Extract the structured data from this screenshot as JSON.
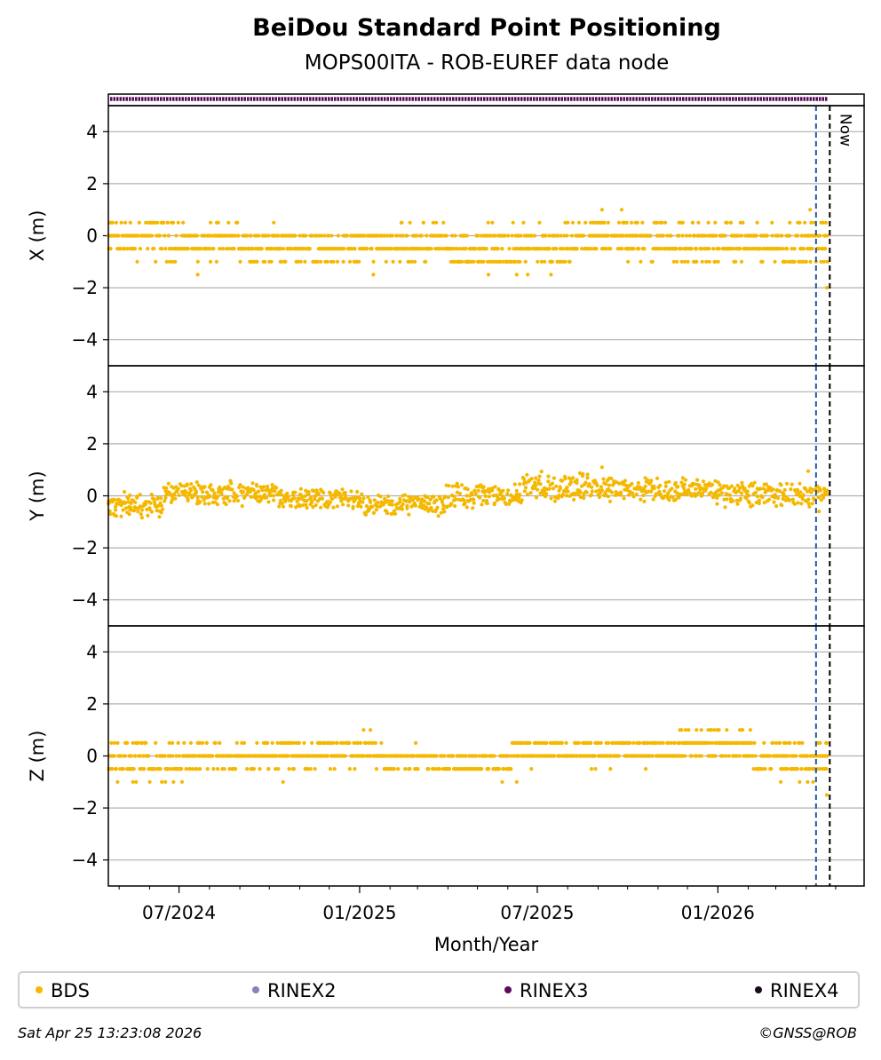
{
  "chart_data": {
    "type": "scatter",
    "title": "BeiDou Standard Point Positioning",
    "subtitle": "MOPS00ITA - ROB-EUREF data node",
    "xlabel": "Month/Year",
    "x_range": [
      "2024-04-20",
      "2026-05-30"
    ],
    "x_ticks": [
      {
        "date": "2024-07-01",
        "label": "07/2024"
      },
      {
        "date": "2025-01-01",
        "label": "01/2025"
      },
      {
        "date": "2025-07-01",
        "label": "07/2025"
      },
      {
        "date": "2026-01-01",
        "label": "01/2026"
      }
    ],
    "vlines": [
      {
        "date": "2026-04-11",
        "color": "#1f5aa6",
        "style": "dashed"
      },
      {
        "date": "2026-04-25",
        "color": "#000000",
        "style": "dashed",
        "label": "Now"
      }
    ],
    "availability_strip": {
      "series": "RINEX3",
      "start": "2024-04-20",
      "end": "2026-04-23",
      "color": "#5b0a5b"
    },
    "data_end": "2026-04-23",
    "grid": true,
    "panels": [
      {
        "ylabel": "X (m)",
        "ylim": [
          -5,
          5
        ],
        "yticks": [
          4,
          2,
          0,
          -2,
          -4
        ],
        "segments": [
          {
            "start": "2024-04-20",
            "end": "2024-07-05",
            "center": -0.1,
            "amp": 0.6
          },
          {
            "start": "2024-07-05",
            "end": "2024-10-10",
            "center": -0.3,
            "amp": 0.5
          },
          {
            "start": "2024-10-10",
            "end": "2025-01-05",
            "center": -0.4,
            "amp": 0.5
          },
          {
            "start": "2025-01-05",
            "end": "2025-04-05",
            "center": -0.3,
            "amp": 0.5
          },
          {
            "start": "2025-04-05",
            "end": "2025-08-10",
            "center": -0.5,
            "amp": 0.6
          },
          {
            "start": "2025-08-10",
            "end": "2025-11-20",
            "center": -0.1,
            "amp": 0.6
          },
          {
            "start": "2025-11-20",
            "end": "2026-04-23",
            "center": -0.3,
            "amp": 0.6
          }
        ],
        "outliers": [
          {
            "date": "2024-07-20",
            "value": -1.5
          },
          {
            "date": "2025-01-15",
            "value": -1.5
          },
          {
            "date": "2025-06-10",
            "value": -1.5
          },
          {
            "date": "2025-07-15",
            "value": -1.5
          },
          {
            "date": "2025-09-05",
            "value": 1.0
          },
          {
            "date": "2025-09-25",
            "value": 1.0
          },
          {
            "date": "2026-04-05",
            "value": 1.0
          },
          {
            "date": "2026-04-22",
            "value": -2.0
          }
        ]
      },
      {
        "ylabel": "Y (m)",
        "ylim": [
          -5,
          5
        ],
        "yticks": [
          4,
          2,
          0,
          -2,
          -4
        ],
        "segments": [
          {
            "start": "2024-04-20",
            "end": "2024-06-15",
            "center": -0.35,
            "amp": 0.35
          },
          {
            "start": "2024-06-15",
            "end": "2024-10-10",
            "center": 0.1,
            "amp": 0.35
          },
          {
            "start": "2024-10-10",
            "end": "2025-01-05",
            "center": -0.1,
            "amp": 0.3
          },
          {
            "start": "2025-01-05",
            "end": "2025-03-30",
            "center": -0.35,
            "amp": 0.3
          },
          {
            "start": "2025-03-30",
            "end": "2025-06-15",
            "center": 0.0,
            "amp": 0.35
          },
          {
            "start": "2025-06-15",
            "end": "2025-09-25",
            "center": 0.35,
            "amp": 0.4
          },
          {
            "start": "2025-09-25",
            "end": "2025-12-25",
            "center": 0.2,
            "amp": 0.35
          },
          {
            "start": "2025-12-25",
            "end": "2026-04-23",
            "center": 0.05,
            "amp": 0.35
          }
        ],
        "outliers": [
          {
            "date": "2025-09-05",
            "value": 1.1
          },
          {
            "date": "2026-04-03",
            "value": 0.95
          },
          {
            "date": "2026-04-14",
            "value": -0.6
          }
        ]
      },
      {
        "ylabel": "Z (m)",
        "ylim": [
          -5,
          5
        ],
        "yticks": [
          4,
          2,
          0,
          -2,
          -4
        ],
        "segments": [
          {
            "start": "2024-04-20",
            "end": "2024-07-05",
            "center": -0.2,
            "amp": 0.6
          },
          {
            "start": "2024-07-05",
            "end": "2024-10-10",
            "center": 0.0,
            "amp": 0.4
          },
          {
            "start": "2024-10-10",
            "end": "2025-01-25",
            "center": 0.1,
            "amp": 0.4
          },
          {
            "start": "2025-01-25",
            "end": "2025-06-05",
            "center": -0.2,
            "amp": 0.4
          },
          {
            "start": "2025-06-05",
            "end": "2025-11-20",
            "center": 0.2,
            "amp": 0.4
          },
          {
            "start": "2025-11-20",
            "end": "2026-02-05",
            "center": 0.45,
            "amp": 0.4
          },
          {
            "start": "2026-02-05",
            "end": "2026-04-23",
            "center": -0.1,
            "amp": 0.5
          }
        ],
        "outliers": [
          {
            "date": "2024-10-15",
            "value": -1.0
          },
          {
            "date": "2025-01-05",
            "value": 1.0
          },
          {
            "date": "2025-01-12",
            "value": 1.0
          },
          {
            "date": "2025-06-10",
            "value": -1.0
          },
          {
            "date": "2025-11-25",
            "value": 1.0
          },
          {
            "date": "2026-04-08",
            "value": -1.0
          },
          {
            "date": "2026-04-22",
            "value": -1.5
          }
        ]
      }
    ],
    "legend": [
      {
        "label": "BDS",
        "color": "#f5b800"
      },
      {
        "label": "RINEX2",
        "color": "#8a7fbf"
      },
      {
        "label": "RINEX3",
        "color": "#5b0a5b"
      },
      {
        "label": "RINEX4",
        "color": "#1a0a1a"
      }
    ]
  },
  "footer": {
    "timestamp": "Sat Apr 25 13:23:08 2026",
    "credit": "©GNSS@ROB"
  }
}
